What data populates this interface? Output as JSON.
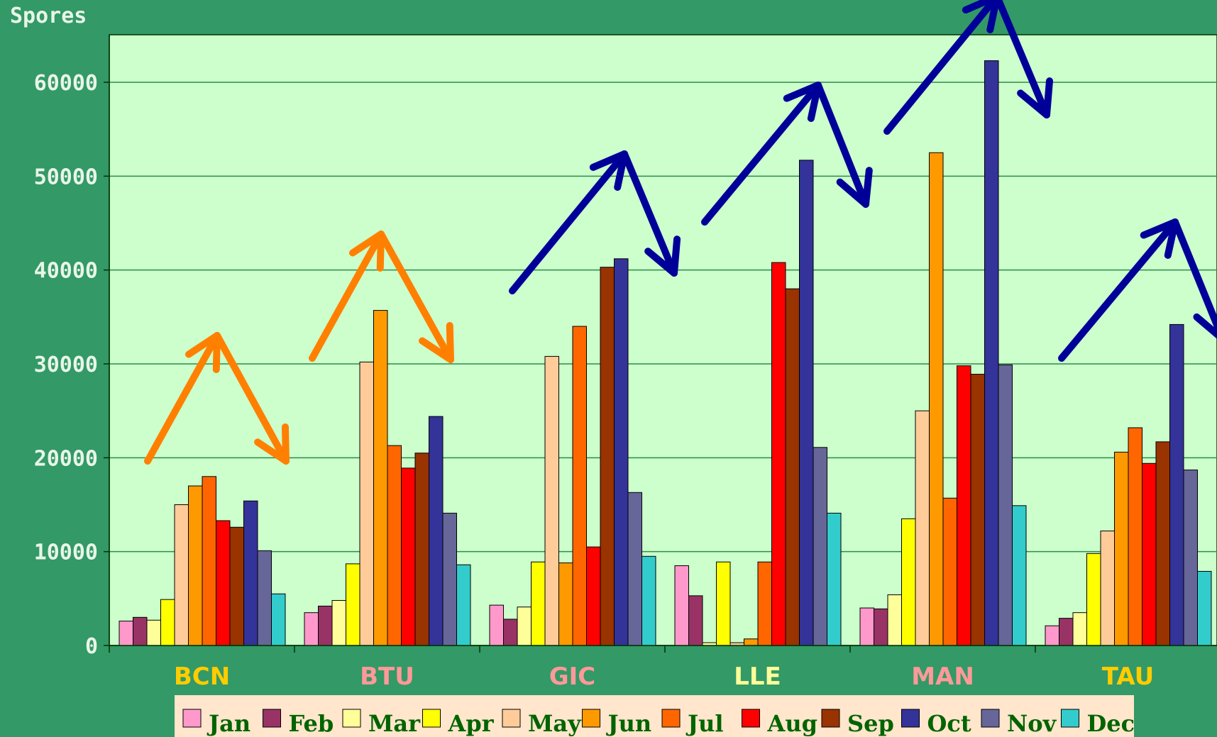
{
  "chart_data": {
    "type": "bar",
    "ylabel": "Spores",
    "ylim": [
      0,
      65000
    ],
    "yticks": [
      0,
      10000,
      20000,
      30000,
      40000,
      50000,
      60000
    ],
    "grid": true,
    "legend_position": "bottom",
    "categories": [
      "BCN",
      "BTU",
      "GIC",
      "LLE",
      "MAN",
      "TAU"
    ],
    "category_colors": [
      "#ffcc00",
      "#ff9999",
      "#ff9999",
      "#ffff99",
      "#ff9999",
      "#ffcc00"
    ],
    "series": [
      {
        "name": "Jan",
        "color": "#ff99cc",
        "values": [
          2600,
          3500,
          4300,
          8500,
          4000,
          2100
        ]
      },
      {
        "name": "Feb",
        "color": "#993366",
        "values": [
          3000,
          4200,
          2800,
          5300,
          3900,
          2900
        ]
      },
      {
        "name": "Mar",
        "color": "#ffff99",
        "values": [
          2700,
          4800,
          4100,
          300,
          5400,
          3500
        ]
      },
      {
        "name": "Apr",
        "color": "#ffff00",
        "values": [
          4900,
          8700,
          8900,
          8900,
          13500,
          9800
        ]
      },
      {
        "name": "May",
        "color": "#ffcc99",
        "values": [
          15000,
          30200,
          30800,
          300,
          25000,
          12200
        ]
      },
      {
        "name": "Jun",
        "color": "#ff9900",
        "values": [
          17000,
          35700,
          8800,
          700,
          52500,
          20600
        ]
      },
      {
        "name": "Jul",
        "color": "#ff6600",
        "values": [
          18000,
          21300,
          34000,
          8900,
          15700,
          23200
        ]
      },
      {
        "name": "Aug",
        "color": "#ff0000",
        "values": [
          13300,
          18900,
          10500,
          40800,
          29800,
          19400
        ]
      },
      {
        "name": "Sep",
        "color": "#993300",
        "values": [
          12600,
          20500,
          40300,
          38000,
          28900,
          21700
        ]
      },
      {
        "name": "Oct",
        "color": "#333399",
        "values": [
          15400,
          24400,
          41200,
          51700,
          62300,
          34200
        ]
      },
      {
        "name": "Nov",
        "color": "#666699",
        "values": [
          10100,
          14100,
          16300,
          21100,
          29900,
          18700
        ]
      },
      {
        "name": "Dec",
        "color": "#33cccc",
        "values": [
          5500,
          8600,
          9500,
          14100,
          14900,
          7900
        ]
      }
    ],
    "annotations": [
      {
        "type": "arrow-up-down",
        "color": "#ff8000"
      },
      {
        "type": "arrow-up-down",
        "color": "#ff8000"
      },
      {
        "type": "arrow-up-down",
        "color": "#000099"
      },
      {
        "type": "arrow-up-down",
        "color": "#000099"
      },
      {
        "type": "arrow-up-down",
        "color": "#000099"
      },
      {
        "type": "arrow-up-down",
        "color": "#000099"
      }
    ]
  },
  "colors": {
    "background": "#339966",
    "plot_area": "#ccffcc",
    "gridline": "#2e8b4a",
    "legend_box": "#ffe6cc",
    "legend_text": "#006400"
  }
}
